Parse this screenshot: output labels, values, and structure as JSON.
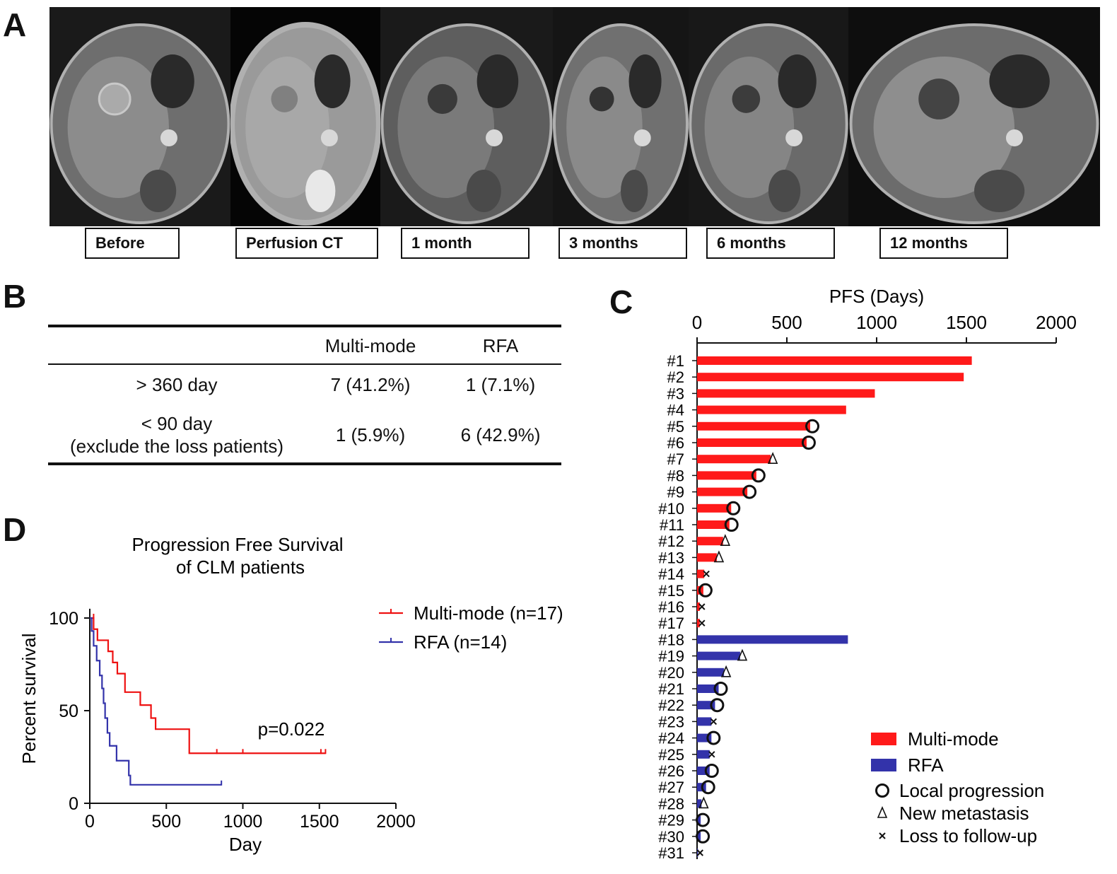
{
  "panels": {
    "a": "A",
    "b": "B",
    "c": "C",
    "d": "D"
  },
  "panel_a": {
    "labels": [
      "Before",
      "Perfusion CT",
      "1 month",
      "3 months",
      "6 months",
      "12 months"
    ]
  },
  "panel_b": {
    "header": {
      "col1": "Multi-mode",
      "col2": "RFA"
    },
    "rows": [
      {
        "label": "> 360 day",
        "label2": "",
        "multi": "7 (41.2%)",
        "rfa": "1 (7.1%)"
      },
      {
        "label": "< 90 day",
        "label2": "(exclude the loss patients)",
        "multi": "1 (5.9%)",
        "rfa": "6 (42.9%)"
      }
    ]
  },
  "chart_data": [
    {
      "type": "bar",
      "orientation": "horizontal",
      "title": "PFS (Days)",
      "xlim": [
        0,
        2000
      ],
      "xticks": [
        0,
        500,
        1000,
        1500,
        2000
      ],
      "categories": [
        "#1",
        "#2",
        "#3",
        "#4",
        "#5",
        "#6",
        "#7",
        "#8",
        "#9",
        "#10",
        "#11",
        "#12",
        "#13",
        "#14",
        "#15",
        "#16",
        "#17",
        "#18",
        "#19",
        "#20",
        "#21",
        "#22",
        "#23",
        "#24",
        "#25",
        "#26",
        "#27",
        "#28",
        "#29",
        "#30",
        "#31"
      ],
      "values": [
        1530,
        1485,
        990,
        830,
        630,
        610,
        410,
        330,
        280,
        190,
        180,
        145,
        110,
        40,
        35,
        15,
        15,
        840,
        240,
        150,
        120,
        100,
        80,
        80,
        70,
        70,
        50,
        25,
        20,
        20,
        5
      ],
      "groups": [
        "Multi-mode",
        "Multi-mode",
        "Multi-mode",
        "Multi-mode",
        "Multi-mode",
        "Multi-mode",
        "Multi-mode",
        "Multi-mode",
        "Multi-mode",
        "Multi-mode",
        "Multi-mode",
        "Multi-mode",
        "Multi-mode",
        "Multi-mode",
        "Multi-mode",
        "Multi-mode",
        "Multi-mode",
        "RFA",
        "RFA",
        "RFA",
        "RFA",
        "RFA",
        "RFA",
        "RFA",
        "RFA",
        "RFA",
        "RFA",
        "RFA",
        "RFA",
        "RFA",
        "RFA"
      ],
      "events": [
        "none",
        "none",
        "none",
        "none",
        "local",
        "local",
        "new",
        "local",
        "local",
        "local",
        "local",
        "new",
        "new",
        "loss",
        "local",
        "loss",
        "loss",
        "none",
        "new",
        "new",
        "local",
        "local",
        "loss",
        "local",
        "loss",
        "local",
        "local",
        "new",
        "local",
        "local",
        "loss"
      ],
      "colors": {
        "Multi-mode": "#ff1a1a",
        "RFA": "#3333aa"
      },
      "legend": [
        {
          "kind": "bar",
          "group": "Multi-mode",
          "label": "Multi-mode"
        },
        {
          "kind": "bar",
          "group": "RFA",
          "label": "RFA"
        },
        {
          "kind": "marker",
          "event": "local",
          "label": "Local progression"
        },
        {
          "kind": "marker",
          "event": "new",
          "label": "New metastasis"
        },
        {
          "kind": "marker",
          "event": "loss",
          "label": "Loss to follow-up"
        }
      ]
    },
    {
      "type": "line",
      "subtype": "kaplan-meier",
      "title": "Progression Free Survival",
      "subtitle": "of CLM patients",
      "xlabel": "Day",
      "ylabel": "Percent survival",
      "xlim": [
        0,
        2000
      ],
      "ylim": [
        0,
        100
      ],
      "xticks": [
        0,
        500,
        1000,
        1500,
        2000
      ],
      "yticks": [
        0,
        50,
        100
      ],
      "annotation": "p=0.022",
      "series": [
        {
          "name": "Multi-mode (n=17)",
          "color": "#ee1111",
          "steps": [
            [
              0,
              100
            ],
            [
              25,
              94
            ],
            [
              50,
              88
            ],
            [
              120,
              82
            ],
            [
              150,
              76
            ],
            [
              180,
              70
            ],
            [
              230,
              60
            ],
            [
              280,
              60
            ],
            [
              330,
              53
            ],
            [
              400,
              46
            ],
            [
              430,
              40
            ],
            [
              640,
              40
            ],
            [
              650,
              27
            ],
            [
              1540,
              27
            ]
          ],
          "censored": [
            [
              25,
              100
            ],
            [
              830,
              27
            ],
            [
              1000,
              27
            ],
            [
              1510,
              27
            ],
            [
              1540,
              27
            ]
          ]
        },
        {
          "name": "RFA (n=14)",
          "color": "#3333aa",
          "steps": [
            [
              0,
              100
            ],
            [
              12,
              93
            ],
            [
              25,
              85
            ],
            [
              45,
              77
            ],
            [
              65,
              69
            ],
            [
              80,
              62
            ],
            [
              90,
              54
            ],
            [
              100,
              46
            ],
            [
              115,
              38
            ],
            [
              130,
              31
            ],
            [
              175,
              23
            ],
            [
              255,
              15
            ],
            [
              265,
              10
            ],
            [
              860,
              10
            ]
          ],
          "censored": [
            [
              860,
              10
            ]
          ]
        }
      ]
    }
  ]
}
